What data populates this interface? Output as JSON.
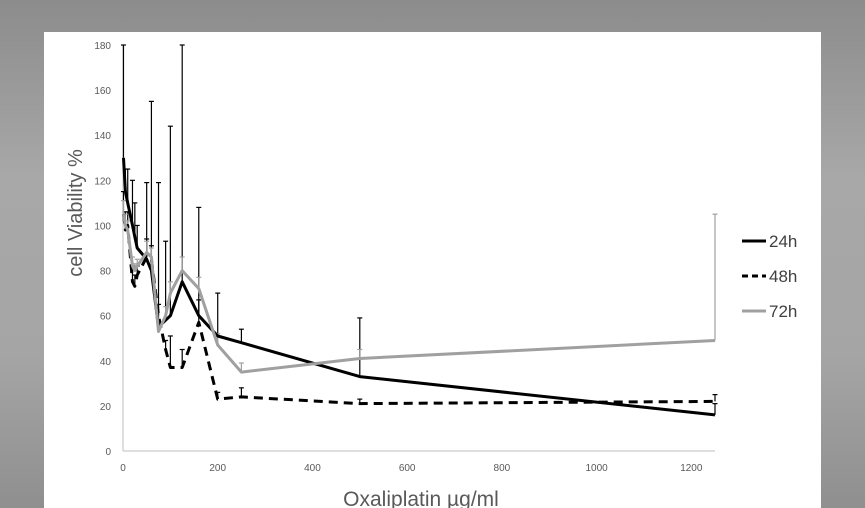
{
  "chart_data": {
    "type": "line",
    "title": "",
    "xlabel": "Oxaliplatin  µg/ml",
    "ylabel": "cell Viability %",
    "xlim": [
      0,
      1250
    ],
    "ylim": [
      0,
      180
    ],
    "x_ticks": [
      0,
      200,
      400,
      600,
      800,
      1000,
      1200
    ],
    "y_ticks": [
      0,
      20,
      40,
      60,
      80,
      100,
      120,
      140,
      160,
      180
    ],
    "grid": false,
    "legend_position": "right",
    "series": [
      {
        "name": "24h",
        "color": "#000000",
        "dash": "solid",
        "x": [
          1,
          5,
          10,
          20,
          25,
          30,
          50,
          60,
          75,
          90,
          100,
          125,
          160,
          200,
          250,
          500,
          1250
        ],
        "y": [
          130,
          115,
          110,
          100,
          95,
          90,
          85,
          80,
          55,
          58,
          60,
          75,
          60,
          51,
          48,
          33,
          16
        ],
        "err": [
          50,
          10,
          15,
          20,
          15,
          10,
          34,
          75,
          64,
          35,
          84,
          120,
          48,
          19,
          6,
          26,
          5
        ]
      },
      {
        "name": "48h",
        "color": "#000000",
        "dash": "dashed",
        "x": [
          1,
          5,
          10,
          20,
          25,
          30,
          50,
          60,
          75,
          90,
          100,
          125,
          160,
          200,
          250,
          500,
          1250
        ],
        "y": [
          105,
          98,
          100,
          75,
          73,
          78,
          86,
          85,
          60,
          45,
          37,
          37,
          57,
          23,
          24,
          21,
          22
        ],
        "err": [
          10,
          8,
          6,
          7,
          5,
          4,
          8,
          6,
          5,
          4,
          14,
          8,
          10,
          3,
          4,
          2,
          3
        ]
      },
      {
        "name": "72h",
        "color": "#a0a0a0",
        "dash": "solid",
        "x": [
          1,
          5,
          10,
          20,
          25,
          30,
          50,
          60,
          75,
          90,
          100,
          125,
          160,
          200,
          250,
          500,
          1250
        ],
        "y": [
          105,
          100,
          98,
          82,
          80,
          82,
          88,
          86,
          53,
          60,
          70,
          80,
          72,
          47,
          35,
          41,
          49
        ],
        "err": [
          6,
          5,
          4,
          4,
          3,
          3,
          5,
          4,
          4,
          4,
          5,
          6,
          5,
          5,
          4,
          4,
          56
        ]
      }
    ]
  }
}
